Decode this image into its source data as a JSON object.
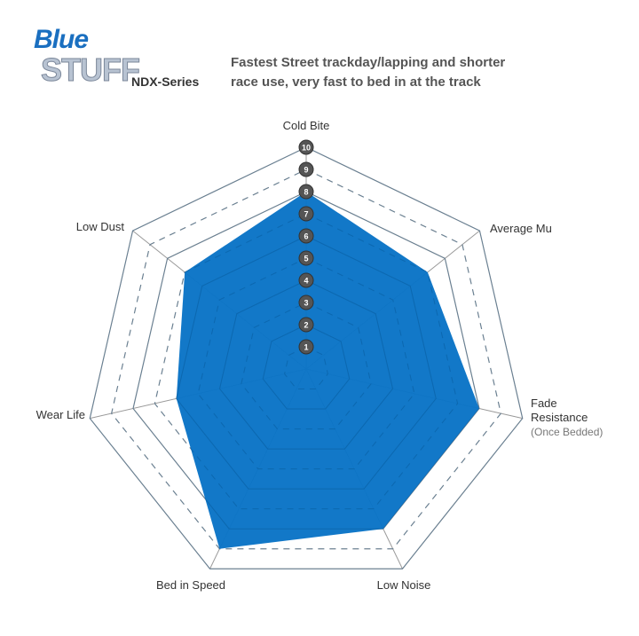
{
  "brand": {
    "logo_line1": "Blue",
    "logo_line2": "STUFF",
    "series": "NDX-Series"
  },
  "description": [
    "Fastest Street trackday/lapping and shorter",
    "race use, very fast to bed in at the track"
  ],
  "colors": {
    "fill": "#0a74c6",
    "grid": "#999999",
    "marker": "#555555"
  },
  "chart_data": {
    "type": "radar",
    "axes": [
      "Cold Bite",
      "Average Mu",
      "Fade Resistance",
      "Low Noise",
      "Bed in Speed",
      "Wear Life",
      "Low Dust"
    ],
    "axis_sublabels": {
      "Fade Resistance": "(Once Bedded)"
    },
    "values": [
      8,
      7,
      8,
      8,
      9,
      6,
      7
    ],
    "range": [
      0,
      10
    ],
    "ticks": [
      "1",
      "2",
      "3",
      "4",
      "5",
      "6",
      "7",
      "8",
      "9",
      "10"
    ]
  }
}
